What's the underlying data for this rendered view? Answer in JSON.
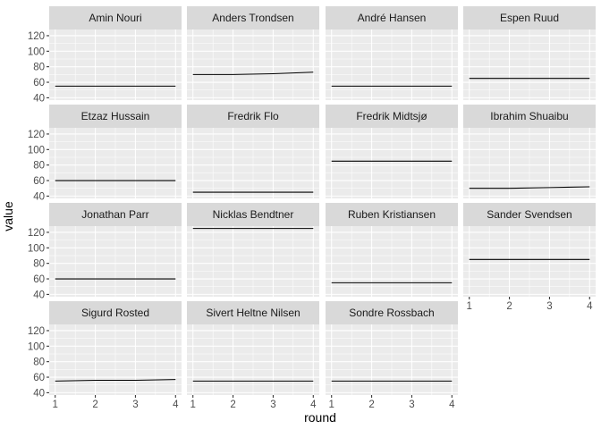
{
  "chart_data": {
    "type": "line",
    "xlabel": "round",
    "ylabel": "value",
    "xlim": [
      0.85,
      4.15
    ],
    "ylim": [
      37,
      128
    ],
    "x_ticks": [
      1,
      2,
      3,
      4
    ],
    "y_ticks": [
      40,
      60,
      80,
      100,
      120
    ],
    "grid": true,
    "series_color": "#000000",
    "panel_background": "#ebebeb",
    "strip_background": "#d9d9d9",
    "panels": [
      {
        "name": "Amin Nouri",
        "x": [
          1,
          2,
          3,
          4
        ],
        "values": [
          55,
          55,
          55,
          55
        ]
      },
      {
        "name": "Anders Trondsen",
        "x": [
          1,
          2,
          3,
          4
        ],
        "values": [
          70,
          70,
          71,
          73
        ]
      },
      {
        "name": "André Hansen",
        "x": [
          1,
          2,
          3,
          4
        ],
        "values": [
          55,
          55,
          55,
          55
        ]
      },
      {
        "name": "Espen Ruud",
        "x": [
          1,
          2,
          3,
          4
        ],
        "values": [
          65,
          65,
          65,
          65
        ]
      },
      {
        "name": "Etzaz Hussain",
        "x": [
          1,
          2,
          3,
          4
        ],
        "values": [
          60,
          60,
          60,
          60
        ]
      },
      {
        "name": "Fredrik Flo",
        "x": [
          1,
          2,
          3,
          4
        ],
        "values": [
          45,
          45,
          45,
          45
        ]
      },
      {
        "name": "Fredrik Midtsjø",
        "x": [
          1,
          2,
          3,
          4
        ],
        "values": [
          85,
          85,
          85,
          85
        ]
      },
      {
        "name": "Ibrahim Shuaibu",
        "x": [
          1,
          2,
          3,
          4
        ],
        "values": [
          50,
          50,
          51,
          52
        ]
      },
      {
        "name": "Jonathan Parr",
        "x": [
          1,
          2,
          3,
          4
        ],
        "values": [
          60,
          60,
          60,
          60
        ]
      },
      {
        "name": "Nicklas Bendtner",
        "x": [
          1,
          2,
          3,
          4
        ],
        "values": [
          125,
          125,
          125,
          125
        ]
      },
      {
        "name": "Ruben Kristiansen",
        "x": [
          1,
          2,
          3,
          4
        ],
        "values": [
          55,
          55,
          55,
          55
        ]
      },
      {
        "name": "Sander Svendsen",
        "x": [
          1,
          2,
          3,
          4
        ],
        "values": [
          85,
          85,
          85,
          85
        ]
      },
      {
        "name": "Sigurd Rosted",
        "x": [
          1,
          2,
          3,
          4
        ],
        "values": [
          55,
          56,
          56,
          57
        ]
      },
      {
        "name": "Sivert Heltne Nilsen",
        "x": [
          1,
          2,
          3,
          4
        ],
        "values": [
          55,
          55,
          55,
          55
        ]
      },
      {
        "name": "Sondre Rossbach",
        "x": [
          1,
          2,
          3,
          4
        ],
        "values": [
          55,
          55,
          55,
          55
        ]
      }
    ]
  }
}
